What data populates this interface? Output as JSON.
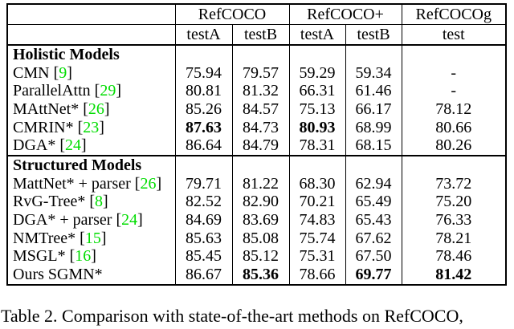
{
  "table": {
    "cite_brackets": {
      "open": "[",
      "close": "]"
    },
    "citation_color": "#00DD00",
    "col_groups": [
      {
        "label": "RefCOCO",
        "span": 2
      },
      {
        "label": "RefCOCO+",
        "span": 2
      },
      {
        "label": "RefCOCOg",
        "span": 1
      }
    ],
    "sub_headers": [
      "testA",
      "testB",
      "testA",
      "testB",
      "test"
    ],
    "sections": [
      {
        "title": "Holistic Models",
        "rows": [
          {
            "model": "CMN",
            "cite": "9",
            "values": [
              "75.94",
              "79.57",
              "59.29",
              "59.34",
              "-"
            ],
            "bold": [
              false,
              false,
              false,
              false,
              false
            ]
          },
          {
            "model": "ParallelAttn",
            "cite": "29",
            "values": [
              "80.81",
              "81.32",
              "66.31",
              "61.46",
              "-"
            ],
            "bold": [
              false,
              false,
              false,
              false,
              false
            ]
          },
          {
            "model": "MAttNet*",
            "cite": "26",
            "values": [
              "85.26",
              "84.57",
              "75.13",
              "66.17",
              "78.12"
            ],
            "bold": [
              false,
              false,
              false,
              false,
              false
            ]
          },
          {
            "model": "CMRIN*",
            "cite": "23",
            "values": [
              "87.63",
              "84.73",
              "80.93",
              "68.99",
              "80.66"
            ],
            "bold": [
              true,
              false,
              true,
              false,
              false
            ]
          },
          {
            "model": "DGA*",
            "cite": "24",
            "values": [
              "86.64",
              "84.79",
              "78.31",
              "68.15",
              "80.26"
            ],
            "bold": [
              false,
              false,
              false,
              false,
              false
            ]
          }
        ]
      },
      {
        "title": "Structured Models",
        "rows": [
          {
            "model": "MattNet* + parser",
            "cite": "26",
            "values": [
              "79.71",
              "81.22",
              "68.30",
              "62.94",
              "73.72"
            ],
            "bold": [
              false,
              false,
              false,
              false,
              false
            ]
          },
          {
            "model": "RvG-Tree*",
            "cite": "8",
            "values": [
              "82.52",
              "82.90",
              "70.21",
              "65.49",
              "75.20"
            ],
            "bold": [
              false,
              false,
              false,
              false,
              false
            ]
          },
          {
            "model": "DGA* + parser",
            "cite": "24",
            "values": [
              "84.69",
              "83.69",
              "74.83",
              "65.43",
              "76.33"
            ],
            "bold": [
              false,
              false,
              false,
              false,
              false
            ]
          },
          {
            "model": "NMTree*",
            "cite": "15",
            "values": [
              "85.63",
              "85.08",
              "75.74",
              "67.62",
              "78.21"
            ],
            "bold": [
              false,
              false,
              false,
              false,
              false
            ]
          },
          {
            "model": "MSGL*",
            "cite": "16",
            "values": [
              "85.45",
              "85.12",
              "75.31",
              "67.50",
              "78.46"
            ],
            "bold": [
              false,
              false,
              false,
              false,
              false
            ]
          },
          {
            "model": "Ours SGMN*",
            "cite": "",
            "values": [
              "86.67",
              "85.36",
              "78.66",
              "69.77",
              "81.42"
            ],
            "bold": [
              false,
              true,
              false,
              true,
              true
            ]
          }
        ]
      }
    ]
  },
  "caption": "Table 2. Comparison with state-of-the-art methods on RefCOCO,"
}
